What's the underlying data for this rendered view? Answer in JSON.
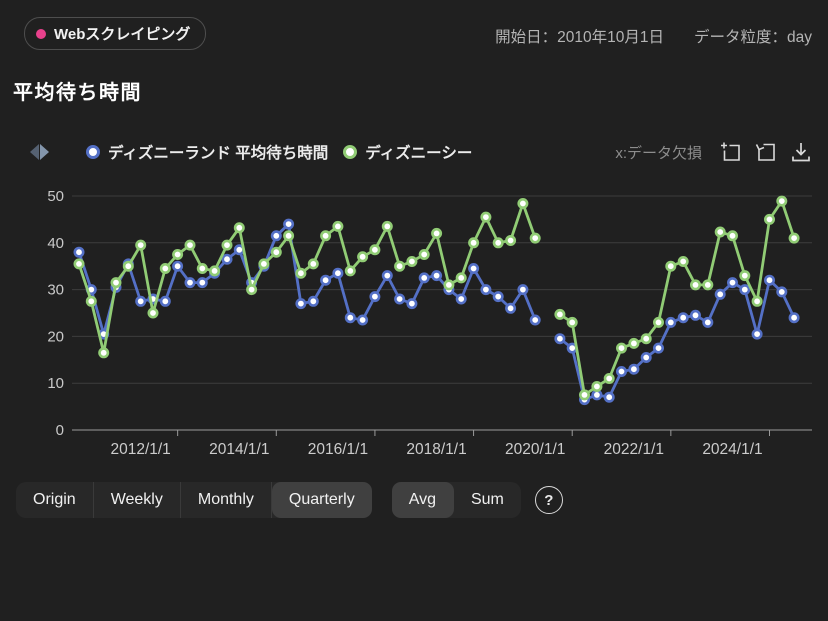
{
  "topbar": {
    "tag_label": "Webスクレイピング",
    "tag_dot_color": "#e8418c",
    "start_date_label": "開始日：2010年10月1日",
    "granularity_label": "データ粒度：day"
  },
  "title": "平均待ち時間",
  "legend": {
    "items": [
      {
        "label": "ディズニーランド 平均待ち時間",
        "color": "#5470c6"
      },
      {
        "label": "ディズニーシー",
        "color": "#91cc75"
      }
    ],
    "missing_data_note": "x:データ欠損"
  },
  "toolbox": {
    "buttons": [
      {
        "name": "zoom-select",
        "icon": "box-zoom-icon"
      },
      {
        "name": "restore",
        "icon": "restore-icon"
      },
      {
        "name": "save-image",
        "icon": "download-icon"
      }
    ]
  },
  "controls": {
    "period": {
      "options": [
        "Origin",
        "Weekly",
        "Monthly",
        "Quarterly"
      ],
      "selected": "Quarterly"
    },
    "aggregation": {
      "options": [
        "Avg",
        "Sum"
      ],
      "selected": "Avg"
    },
    "help_label": "?"
  },
  "chart_data": {
    "type": "line",
    "title": "平均待ち時間",
    "xlabel": "",
    "ylabel": "",
    "ylim": [
      0,
      50
    ],
    "yticks": [
      0,
      10,
      20,
      30,
      40,
      50
    ],
    "grid": "horizontal",
    "legend_position": "top",
    "x_unit": "quarter-start date (Quarterly aggregation)",
    "x": [
      "2010/10/1",
      "2011/1/1",
      "2011/4/1",
      "2011/7/1",
      "2011/10/1",
      "2012/1/1",
      "2012/4/1",
      "2012/7/1",
      "2012/10/1",
      "2013/1/1",
      "2013/4/1",
      "2013/7/1",
      "2013/10/1",
      "2014/1/1",
      "2014/4/1",
      "2014/7/1",
      "2014/10/1",
      "2015/1/1",
      "2015/4/1",
      "2015/7/1",
      "2015/10/1",
      "2016/1/1",
      "2016/4/1",
      "2016/7/1",
      "2016/10/1",
      "2017/1/1",
      "2017/4/1",
      "2017/7/1",
      "2017/10/1",
      "2018/1/1",
      "2018/4/1",
      "2018/7/1",
      "2018/10/1",
      "2019/1/1",
      "2019/4/1",
      "2019/7/1",
      "2019/10/1",
      "2020/1/1",
      "2020/4/1",
      "2020/7/1",
      "2020/10/1",
      "2021/1/1",
      "2021/4/1",
      "2021/7/1",
      "2021/10/1",
      "2022/1/1",
      "2022/4/1",
      "2022/7/1",
      "2022/10/1",
      "2023/1/1",
      "2023/4/1",
      "2023/7/1",
      "2023/10/1",
      "2024/1/1",
      "2024/4/1",
      "2024/7/1",
      "2024/10/1",
      "2025/1/1",
      "2025/4/1"
    ],
    "xtick_labels": [
      "2012/1/1",
      "2014/1/1",
      "2016/1/1",
      "2018/1/1",
      "2020/1/1",
      "2022/1/1",
      "2024/1/1"
    ],
    "xtick_indices": [
      5,
      13,
      21,
      29,
      37,
      45,
      53
    ],
    "missing_x": [
      "2020/4/1"
    ],
    "series": [
      {
        "name": "ディズニーランド 平均待ち時間",
        "color": "#5470c6",
        "values": [
          38,
          30,
          20.5,
          30.5,
          35.5,
          27.5,
          28,
          27.5,
          35,
          31.5,
          31.5,
          33.5,
          36.5,
          38.5,
          31.5,
          35,
          41.5,
          44,
          27,
          27.5,
          32,
          33.5,
          24,
          23.5,
          28.5,
          33,
          28,
          27,
          32.5,
          33,
          30,
          28,
          34.5,
          30,
          28.5,
          26,
          30,
          23.5,
          null,
          19.5,
          17.5,
          6.5,
          7.5,
          7,
          12.5,
          13,
          15.5,
          17.5,
          23,
          24,
          24.5,
          23,
          29,
          31.5,
          30,
          20.5,
          32,
          29.5,
          24
        ]
      },
      {
        "name": "ディズニーシー",
        "color": "#91cc75",
        "values": [
          35.5,
          27.5,
          16.5,
          31.5,
          35,
          39.5,
          25,
          34.5,
          37.5,
          39.5,
          34.5,
          34,
          39.5,
          43.2,
          30,
          35.5,
          38,
          41.5,
          33.5,
          35.5,
          41.5,
          43.5,
          34,
          37,
          38.5,
          43.5,
          35,
          36,
          37.5,
          42,
          31,
          32.5,
          40,
          45.5,
          40,
          40.5,
          48.4,
          41,
          null,
          24.7,
          23,
          7.5,
          9.3,
          11,
          17.5,
          18.5,
          19.5,
          23,
          35,
          36,
          31,
          31,
          42.3,
          41.5,
          33,
          27.5,
          45,
          48.9,
          41
        ]
      }
    ]
  }
}
